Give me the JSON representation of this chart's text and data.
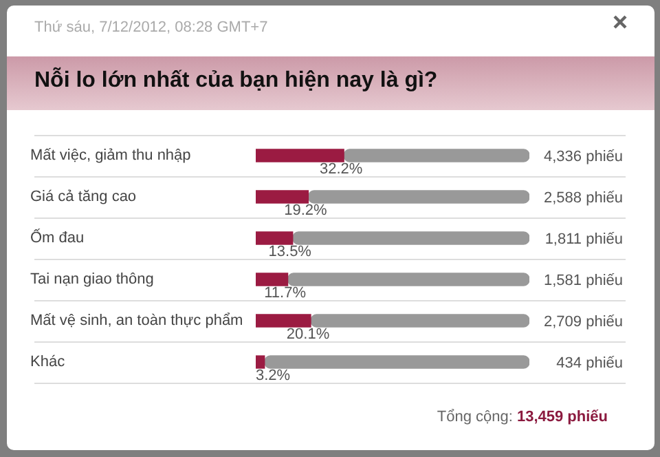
{
  "chart_data": {
    "type": "bar",
    "orientation": "horizontal",
    "title": "Nỗi lo lớn nhất của bạn hiện nay là gì?",
    "subtitle": "Thứ sáu, 7/12/2012, 08:28 GMT+7",
    "categories": [
      "Mất việc, giảm thu nhập",
      "Giá cả tăng cao",
      "Ốm đau",
      "Tai nạn giao thông",
      "Mất vệ sinh, an toàn thực phẩm",
      "Khác"
    ],
    "series": [
      {
        "color": "#9b1b42",
        "values": [
          32.2,
          19.2,
          13.5,
          11.7,
          20.1,
          3.2
        ],
        "value_labels": [
          "32.2%",
          "19.2%",
          "13.5%",
          "11.7%",
          "20.1%",
          "3.2%"
        ]
      },
      {
        "color": "#999999",
        "values": [
          67.8,
          80.8,
          86.5,
          88.3,
          79.9,
          96.8
        ]
      }
    ],
    "stacked": true,
    "xlim": [
      0,
      100
    ],
    "tick_labels": "y",
    "grid": "y",
    "legend": false,
    "annotations": [
      "4,336 phiếu",
      "2,588 phiếu",
      "1,811 phiếu",
      "1,581 phiếu",
      "2,709 phiếu",
      "434 phiếu",
      "Tổng cộng: 13,459 phiếu"
    ]
  }
}
